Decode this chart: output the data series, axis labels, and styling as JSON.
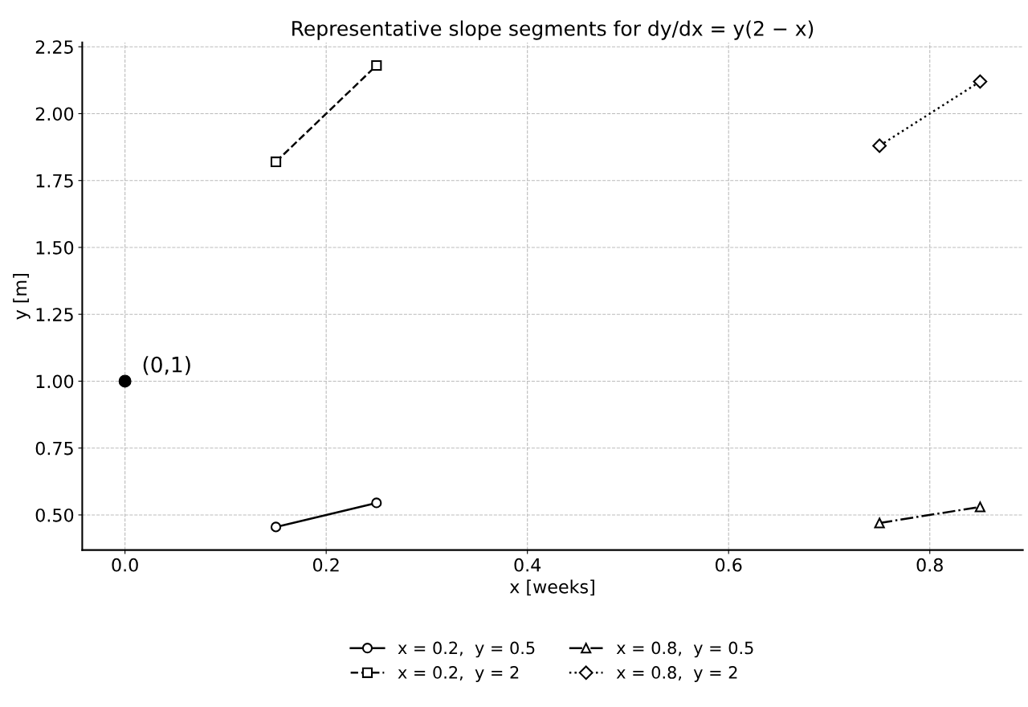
{
  "chart_data": {
    "type": "line",
    "title": "Representative slope segments for dy/dx = y(2 − x)",
    "xlabel": "x [weeks]",
    "ylabel": "y [m]",
    "series": [
      {
        "name": "x = 0.2,  y = 0.5",
        "color": "#000000",
        "x": [
          0.15,
          0.25
        ],
        "values": [
          0.455,
          0.545
        ],
        "marker": "circle",
        "line_style": "solid"
      },
      {
        "name": "x = 0.2,  y = 2",
        "color": "#000000",
        "x": [
          0.15,
          0.25
        ],
        "values": [
          1.82,
          2.18
        ],
        "marker": "square",
        "line_style": "dashed"
      },
      {
        "name": "x = 0.8,  y = 0.5",
        "color": "#000000",
        "x": [
          0.75,
          0.85
        ],
        "values": [
          0.47,
          0.53
        ],
        "marker": "triangle",
        "line_style": "dashdot"
      },
      {
        "name": "x = 0.8,  y = 2",
        "color": "#000000",
        "x": [
          0.75,
          0.85
        ],
        "values": [
          1.88,
          2.12
        ],
        "marker": "diamond",
        "line_style": "dotted"
      },
      {
        "type": "scatter",
        "color": "#000000",
        "x": [
          0
        ],
        "values": [
          1
        ],
        "marker": "circle"
      }
    ],
    "annotations": [
      {
        "text": "(0,1)",
        "x": 0,
        "y": 1
      }
    ],
    "xlim": [
      -0.0425,
      0.8925
    ],
    "xticks": [
      {
        "value": 0,
        "label": "0.0"
      },
      0.2,
      0.4,
      0.6,
      0.8
    ],
    "ylim": [
      0.36875,
      2.26625
    ],
    "yticks": [
      {
        "value": 0.5,
        "label": "0.50"
      },
      {
        "value": 0.75,
        "label": "0.75"
      },
      {
        "value": 1,
        "label": "1.00"
      },
      {
        "value": 1.25,
        "label": "1.25"
      },
      {
        "value": 1.5,
        "label": "1.50"
      },
      {
        "value": 1.75,
        "label": "1.75"
      },
      {
        "value": 2,
        "label": "2.00"
      },
      {
        "value": 2.25,
        "label": "2.25"
      }
    ],
    "grid": true,
    "legend": "bottom"
  }
}
